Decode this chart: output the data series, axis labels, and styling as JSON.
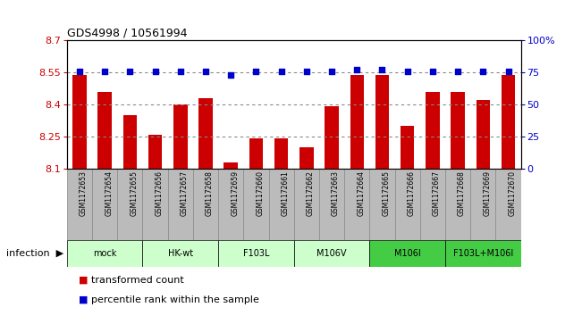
{
  "title": "GDS4998 / 10561994",
  "samples": [
    "GSM1172653",
    "GSM1172654",
    "GSM1172655",
    "GSM1172656",
    "GSM1172657",
    "GSM1172658",
    "GSM1172659",
    "GSM1172660",
    "GSM1172661",
    "GSM1172662",
    "GSM1172663",
    "GSM1172664",
    "GSM1172665",
    "GSM1172666",
    "GSM1172667",
    "GSM1172668",
    "GSM1172669",
    "GSM1172670"
  ],
  "bar_values": [
    8.54,
    8.46,
    8.35,
    8.26,
    8.4,
    8.43,
    8.13,
    8.24,
    8.24,
    8.2,
    8.39,
    8.54,
    8.54,
    8.3,
    8.46,
    8.46,
    8.42,
    8.54
  ],
  "dot_values": [
    76,
    76,
    76,
    76,
    76,
    76,
    73,
    76,
    76,
    76,
    76,
    77,
    77,
    76,
    76,
    76,
    76,
    76
  ],
  "ylim_left": [
    8.1,
    8.7
  ],
  "ylim_right": [
    0,
    100
  ],
  "yticks_left": [
    8.1,
    8.25,
    8.4,
    8.55,
    8.7
  ],
  "yticks_right": [
    0,
    25,
    50,
    75,
    100
  ],
  "ytick_labels_left": [
    "8.1",
    "8.25",
    "8.4",
    "8.55",
    "8.7"
  ],
  "ytick_labels_right": [
    "0",
    "25",
    "50",
    "75",
    "100%"
  ],
  "bar_color": "#cc0000",
  "dot_color": "#0000cc",
  "background_color": "#ffffff",
  "sample_box_color": "#bbbbbb",
  "sample_box_edge": "#888888",
  "groups": [
    {
      "label": "mock",
      "start": 0,
      "end": 2,
      "color": "#ccffcc"
    },
    {
      "label": "HK-wt",
      "start": 3,
      "end": 5,
      "color": "#ccffcc"
    },
    {
      "label": "F103L",
      "start": 6,
      "end": 8,
      "color": "#ccffcc"
    },
    {
      "label": "M106V",
      "start": 9,
      "end": 11,
      "color": "#ccffcc"
    },
    {
      "label": "M106I",
      "start": 12,
      "end": 14,
      "color": "#44cc44"
    },
    {
      "label": "F103L+M106I",
      "start": 15,
      "end": 17,
      "color": "#44cc44"
    }
  ],
  "infection_label": "infection",
  "legend_bar_label": "transformed count",
  "legend_dot_label": "percentile rank within the sample",
  "left_tick_color": "#cc0000",
  "right_tick_color": "#0000cc",
  "dotted_line_color": "#888888",
  "hline_pcts": [
    25,
    50,
    75
  ]
}
